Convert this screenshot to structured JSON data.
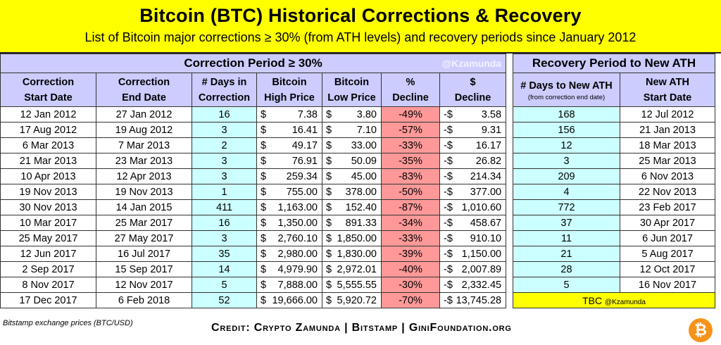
{
  "title": "Bitcoin (BTC) Historical Corrections & Recovery",
  "subtitle": "List of Bitcoin major corrections ≥ 30% (from ATH levels) and recovery periods since January 2012",
  "correction_section_title": "Correction Period ≥ 30%",
  "recovery_section_title": "Recovery Period to New ATH",
  "watermark": "@Kzamunda",
  "columns": {
    "start": [
      "Correction",
      "Start Date"
    ],
    "end": [
      "Correction",
      "End Date"
    ],
    "days": [
      "# Days in",
      "Correction"
    ],
    "high": [
      "Bitcoin",
      "High Price"
    ],
    "low": [
      "Bitcoin",
      "Low Price"
    ],
    "pct": [
      "%",
      "Decline"
    ],
    "usd": [
      "$",
      "Decline"
    ],
    "rec_days": [
      "# Days to New ATH",
      "(from correction end date)"
    ],
    "rec_start": [
      "New ATH",
      "Start Date"
    ]
  },
  "currency_symbol": "$",
  "currency_symbol_neg": "-$",
  "rows": [
    {
      "start": "12 Jan 2012",
      "end": "27 Jan 2012",
      "days": "16",
      "high": "7.38",
      "low": "3.80",
      "pct": "-49%",
      "usd": "3.58",
      "rec_days": "168",
      "rec_start": "12 Jul 2012"
    },
    {
      "start": "17 Aug 2012",
      "end": "19 Aug 2012",
      "days": "3",
      "high": "16.41",
      "low": "7.10",
      "pct": "-57%",
      "usd": "9.31",
      "rec_days": "156",
      "rec_start": "21 Jan 2013"
    },
    {
      "start": "6 Mar 2013",
      "end": "7 Mar 2013",
      "days": "2",
      "high": "49.17",
      "low": "33.00",
      "pct": "-33%",
      "usd": "16.17",
      "rec_days": "12",
      "rec_start": "18 Mar 2013"
    },
    {
      "start": "21 Mar 2013",
      "end": "23 Mar 2013",
      "days": "3",
      "high": "76.91",
      "low": "50.09",
      "pct": "-35%",
      "usd": "26.82",
      "rec_days": "3",
      "rec_start": "25 Mar 2013"
    },
    {
      "start": "10 Apr 2013",
      "end": "12 Apr 2013",
      "days": "3",
      "high": "259.34",
      "low": "45.00",
      "pct": "-83%",
      "usd": "214.34",
      "rec_days": "209",
      "rec_start": "6 Nov 2013"
    },
    {
      "start": "19 Nov 2013",
      "end": "19 Nov 2013",
      "days": "1",
      "high": "755.00",
      "low": "378.00",
      "pct": "-50%",
      "usd": "377.00",
      "rec_days": "4",
      "rec_start": "22 Nov 2013"
    },
    {
      "start": "30 Nov 2013",
      "end": "14 Jan 2015",
      "days": "411",
      "high": "1,163.00",
      "low": "152.40",
      "pct": "-87%",
      "usd": "1,010.60",
      "rec_days": "772",
      "rec_start": "23 Feb 2017"
    },
    {
      "start": "10 Mar 2017",
      "end": "25 Mar 2017",
      "days": "16",
      "high": "1,350.00",
      "low": "891.33",
      "pct": "-34%",
      "usd": "458.67",
      "rec_days": "37",
      "rec_start": "30 Apr 2017"
    },
    {
      "start": "25 May 2017",
      "end": "27 May 2017",
      "days": "3",
      "high": "2,760.10",
      "low": "1,850.00",
      "pct": "-33%",
      "usd": "910.10",
      "rec_days": "11",
      "rec_start": "6 Jun 2017"
    },
    {
      "start": "12 Jun 2017",
      "end": "16 Jul 2017",
      "days": "35",
      "high": "2,980.00",
      "low": "1,830.00",
      "pct": "-39%",
      "usd": "1,150.00",
      "rec_days": "21",
      "rec_start": "5 Aug 2017"
    },
    {
      "start": "2 Sep 2017",
      "end": "15 Sep 2017",
      "days": "14",
      "high": "4,979.90",
      "low": "2,972.01",
      "pct": "-40%",
      "usd": "2,007.89",
      "rec_days": "28",
      "rec_start": "12 Oct 2017"
    },
    {
      "start": "8 Nov 2017",
      "end": "12 Nov 2017",
      "days": "5",
      "high": "7,888.00",
      "low": "5,555.55",
      "pct": "-30%",
      "usd": "2,332.45",
      "rec_days": "5",
      "rec_start": "16 Nov 2017"
    },
    {
      "start": "17 Dec 2017",
      "end": "6 Feb 2018",
      "days": "52",
      "high": "19,666.00",
      "low": "5,920.72",
      "pct": "-70%",
      "usd": "13,745.28"
    }
  ],
  "tbc_text": "TBC",
  "tbc_handle": "@Kzamunda",
  "footnote": "Bitstamp exchange prices (BTC/USD)",
  "credit": "Credit: Crypto Zamunda | Bitstamp | GiniFoundation.org",
  "coin_icon": "bitcoin-logo-icon",
  "coin_glyph": "₿",
  "colors": {
    "title_bg": "#ffff00",
    "header_bg": "#ccccff",
    "days_bg": "#ccffff",
    "decline_bg": "#ff9999",
    "coin": "#f7931a"
  }
}
